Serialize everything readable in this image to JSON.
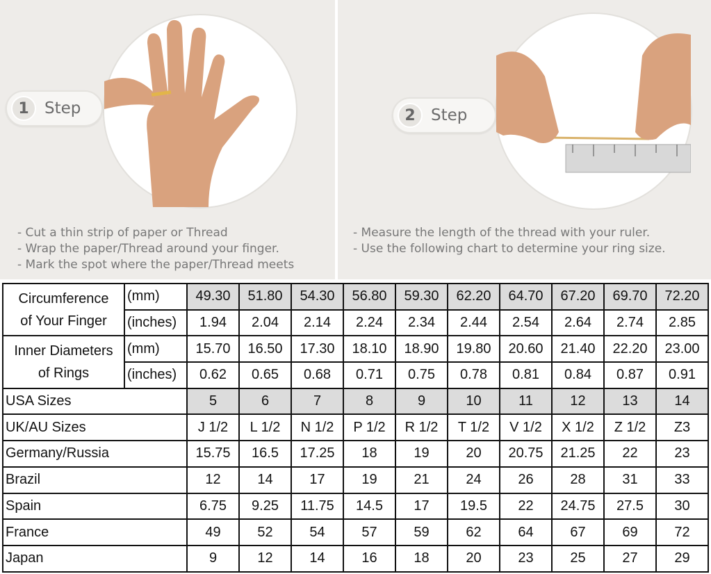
{
  "step1": {
    "number": "1",
    "label": "Step",
    "instructions": [
      "- Cut a thin strip of paper or Thread",
      "- Wrap the paper/Thread around your finger.",
      "- Mark the spot where the paper/Thread meets"
    ]
  },
  "step2": {
    "number": "2",
    "label": "Step",
    "instructions": [
      "- Measure the length of the thread with your ruler.",
      "- Use the following chart to determine your ring size."
    ]
  },
  "table": {
    "circumference": {
      "label_line1": "Circumference",
      "label_line2": "of Your Finger",
      "unit_mm": "(mm)",
      "unit_in": "(inches)",
      "mm": [
        "49.30",
        "51.80",
        "54.30",
        "56.80",
        "59.30",
        "62.20",
        "64.70",
        "67.20",
        "69.70",
        "72.20"
      ],
      "inches": [
        "1.94",
        "2.04",
        "2.14",
        "2.24",
        "2.34",
        "2.44",
        "2.54",
        "2.64",
        "2.74",
        "2.85"
      ]
    },
    "inner_diameter": {
      "label_line1": "Inner Diameters",
      "label_line2": "of Rings",
      "unit_mm": "(mm)",
      "unit_in": "(inches)",
      "mm": [
        "15.70",
        "16.50",
        "17.30",
        "18.10",
        "18.90",
        "19.80",
        "20.60",
        "21.40",
        "22.20",
        "23.00"
      ],
      "inches": [
        "0.62",
        "0.65",
        "0.68",
        "0.71",
        "0.75",
        "0.78",
        "0.81",
        "0.84",
        "0.87",
        "0.91"
      ]
    },
    "rows": [
      {
        "label": "USA Sizes",
        "values": [
          "5",
          "6",
          "7",
          "8",
          "9",
          "10",
          "11",
          "12",
          "13",
          "14"
        ]
      },
      {
        "label": "UK/AU Sizes",
        "values": [
          "J 1/2",
          "L 1/2",
          "N 1/2",
          "P 1/2",
          "R 1/2",
          "T 1/2",
          "V 1/2",
          "X 1/2",
          "Z 1/2",
          "Z3"
        ]
      },
      {
        "label": "Germany/Russia",
        "values": [
          "15.75",
          "16.5",
          "17.25",
          "18",
          "19",
          "20",
          "20.75",
          "21.25",
          "22",
          "23"
        ]
      },
      {
        "label": "Brazil",
        "values": [
          "12",
          "14",
          "17",
          "19",
          "21",
          "24",
          "26",
          "28",
          "31",
          "33"
        ]
      },
      {
        "label": "Spain",
        "values": [
          "6.75",
          "9.25",
          "11.75",
          "14.5",
          "17",
          "19.5",
          "22",
          "24.75",
          "27.5",
          "30"
        ]
      },
      {
        "label": "France",
        "values": [
          "49",
          "52",
          "54",
          "57",
          "59",
          "62",
          "64",
          "67",
          "69",
          "72"
        ]
      },
      {
        "label": "Japan",
        "values": [
          "9",
          "12",
          "14",
          "16",
          "18",
          "20",
          "23",
          "25",
          "27",
          "29"
        ]
      }
    ]
  },
  "colors": {
    "highlight": "#dcdcdc",
    "skin": "#d9a27e",
    "ruler": "#d8d8d8"
  }
}
